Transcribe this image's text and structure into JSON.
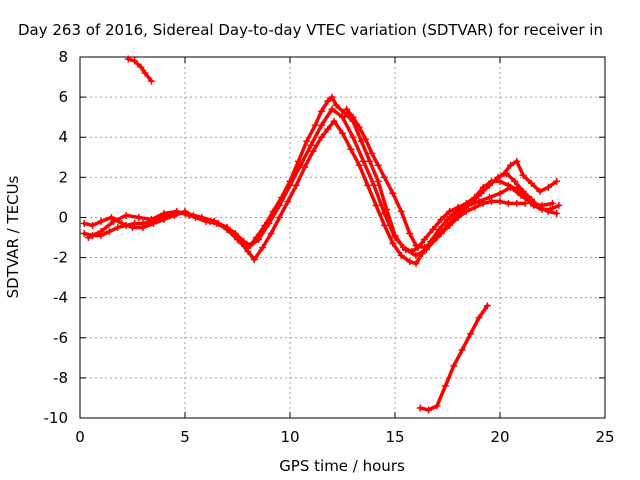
{
  "chart_data": {
    "type": "scatter",
    "title": "Day 263 of 2016, Sidereal Day-to-day VTEC variation (SDTVAR) for receiver in",
    "xlabel": "GPS time / hours",
    "ylabel": "SDTVAR / TECUs",
    "xlim": [
      0,
      25
    ],
    "ylim": [
      -10,
      8
    ],
    "xticks": [
      0,
      5,
      10,
      15,
      20,
      25
    ],
    "yticks": [
      -10,
      -8,
      -6,
      -4,
      -2,
      0,
      2,
      4,
      6,
      8
    ],
    "grid": true,
    "marker": "plus",
    "color": "#ff0000",
    "series": [
      {
        "x": [
          2.3,
          2.6,
          2.9,
          3.1,
          3.4
        ],
        "y": [
          7.9,
          7.8,
          7.5,
          7.2,
          6.8
        ]
      },
      {
        "x": [
          0.2,
          0.6,
          1.0,
          1.4,
          1.8,
          2.2,
          2.6,
          3.0,
          3.4,
          3.8,
          4.2,
          4.6,
          5.0,
          5.4,
          5.8,
          6.2,
          6.6,
          7.0,
          7.4,
          7.8,
          8.1,
          8.4,
          8.8,
          9.2,
          9.6,
          10.0,
          10.4,
          10.8,
          11.2,
          11.5,
          11.8,
          12.0,
          12.2,
          12.6,
          13.0,
          13.4,
          13.8,
          14.2,
          14.6,
          15.0,
          15.4,
          15.8,
          16.1,
          16.4,
          16.8,
          17.2,
          17.6,
          18.0,
          18.4,
          18.8,
          19.2,
          19.6,
          20.0,
          20.4,
          20.8,
          21.2,
          21.6,
          22.0,
          22.4,
          22.8
        ],
        "y": [
          -0.8,
          -0.9,
          -0.9,
          -0.7,
          -0.5,
          -0.4,
          -0.3,
          -0.3,
          -0.2,
          0.0,
          0.1,
          0.2,
          0.2,
          0.1,
          0.0,
          -0.2,
          -0.3,
          -0.5,
          -0.8,
          -1.2,
          -1.4,
          -1.0,
          -0.4,
          0.3,
          1.0,
          1.8,
          2.8,
          3.8,
          4.6,
          5.3,
          5.8,
          6.0,
          5.6,
          5.2,
          4.8,
          3.8,
          2.8,
          1.8,
          0.4,
          -0.9,
          -1.5,
          -1.7,
          -1.5,
          -1.1,
          -0.6,
          -0.1,
          0.3,
          0.5,
          0.7,
          1.0,
          1.5,
          1.8,
          1.8,
          1.6,
          1.4,
          1.0,
          0.6,
          0.4,
          0.4,
          0.6
        ]
      },
      {
        "x": [
          0.2,
          0.6,
          1.0,
          1.5,
          2.0,
          2.5,
          3.0,
          3.5,
          4.0,
          4.5,
          5.0,
          5.5,
          6.0,
          6.5,
          7.0,
          7.4,
          7.7,
          8.0,
          8.3,
          8.7,
          9.1,
          9.5,
          9.9,
          10.3,
          10.7,
          11.1,
          11.5,
          11.8,
          12.1,
          12.5,
          12.9,
          13.3,
          13.7,
          14.1,
          14.5,
          14.9,
          15.3,
          15.7,
          16.0,
          16.3,
          16.7,
          17.1,
          17.5,
          17.9,
          18.3,
          18.7,
          19.1,
          19.5,
          19.9,
          20.3,
          20.7,
          21.1,
          21.5,
          21.9,
          22.3,
          22.7
        ],
        "y": [
          -0.3,
          -0.4,
          -0.2,
          0.0,
          -0.3,
          -0.5,
          -0.5,
          -0.3,
          -0.1,
          0.1,
          0.3,
          0.0,
          -0.2,
          -0.3,
          -0.5,
          -0.9,
          -1.3,
          -1.7,
          -2.1,
          -1.5,
          -0.8,
          0.0,
          0.8,
          1.6,
          2.5,
          3.3,
          4.0,
          4.4,
          4.8,
          4.2,
          3.4,
          2.6,
          1.6,
          0.6,
          -0.4,
          -1.3,
          -1.9,
          -2.2,
          -2.3,
          -1.8,
          -1.2,
          -0.6,
          -0.1,
          0.3,
          0.5,
          0.8,
          1.2,
          1.6,
          2.0,
          2.2,
          1.8,
          1.3,
          0.9,
          0.5,
          0.3,
          0.2
        ]
      },
      {
        "x": [
          0.4,
          1.0,
          1.6,
          2.2,
          2.8,
          3.4,
          4.0,
          4.6,
          5.2,
          5.8,
          6.4,
          7.0,
          7.5,
          8.0,
          8.5,
          9.0,
          9.5,
          10.0,
          10.5,
          11.0,
          11.5,
          12.0,
          12.5,
          13.0,
          13.5,
          14.0,
          14.5,
          15.0,
          15.5,
          16.0,
          16.5,
          17.0,
          17.5,
          18.0,
          18.5,
          19.0,
          19.5,
          20.0,
          20.5,
          21.0,
          21.5,
          22.0,
          22.5
        ],
        "y": [
          -1.0,
          -0.7,
          -0.2,
          0.1,
          0.0,
          -0.1,
          0.2,
          0.3,
          0.1,
          0.0,
          -0.2,
          -0.6,
          -1.1,
          -1.5,
          -1.1,
          -0.3,
          0.6,
          1.6,
          2.6,
          3.6,
          4.6,
          5.4,
          5.0,
          4.0,
          2.8,
          1.6,
          0.2,
          -1.0,
          -1.6,
          -1.9,
          -1.6,
          -1.0,
          -0.4,
          0.2,
          0.6,
          0.8,
          1.0,
          1.2,
          1.5,
          1.1,
          0.7,
          0.6,
          0.7
        ]
      },
      {
        "x": [
          12.7,
          13.0,
          13.3,
          13.6,
          13.9,
          14.2,
          14.5,
          14.9,
          15.3,
          15.7,
          16.0,
          16.4,
          16.8,
          17.2,
          17.6,
          18.0,
          18.4,
          18.8,
          19.2,
          19.6,
          20.0,
          20.4,
          20.8,
          21.2
        ],
        "y": [
          5.4,
          5.0,
          4.5,
          3.9,
          3.2,
          2.6,
          2.0,
          1.2,
          0.3,
          -0.8,
          -1.4,
          -1.5,
          -1.2,
          -0.8,
          -0.4,
          0.0,
          0.3,
          0.5,
          0.7,
          0.8,
          0.8,
          0.7,
          0.7,
          0.7
        ]
      },
      {
        "x": [
          20.2,
          20.5,
          20.8,
          21.1,
          21.5,
          21.9,
          22.3,
          22.7
        ],
        "y": [
          2.2,
          2.6,
          2.8,
          2.1,
          1.7,
          1.3,
          1.5,
          1.8
        ]
      },
      {
        "x": [
          16.2,
          16.6,
          17.0,
          17.4,
          17.8,
          18.2,
          18.6,
          19.0,
          19.4
        ],
        "y": [
          -9.5,
          -9.6,
          -9.4,
          -8.4,
          -7.4,
          -6.6,
          -5.8,
          -5.0,
          -4.4
        ]
      }
    ]
  }
}
